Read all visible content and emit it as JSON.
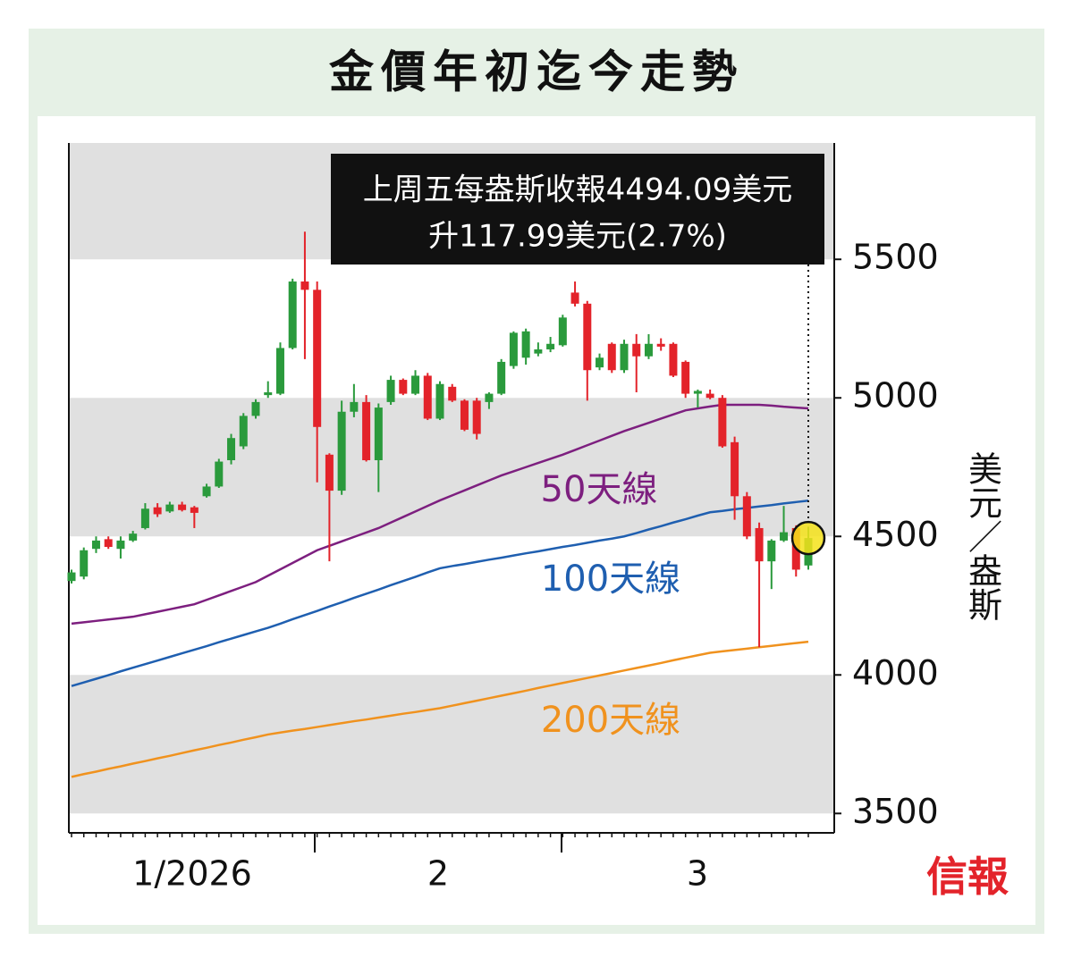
{
  "title": "金價年初迄今走勢",
  "logo": "信報",
  "chart_data": {
    "type": "candlestick",
    "categories": [
      null,
      null,
      null,
      null,
      null,
      null,
      null,
      null,
      null,
      null,
      null,
      null,
      null,
      null,
      null,
      null,
      null,
      null,
      null,
      null,
      null,
      null,
      null,
      null,
      null,
      null,
      null,
      null,
      null,
      null,
      null,
      null,
      null,
      null,
      null,
      null,
      null,
      null,
      null,
      null,
      null,
      null,
      null,
      null,
      null,
      null,
      null,
      null,
      null,
      null,
      null,
      null,
      null,
      null,
      null,
      null,
      null,
      null,
      null,
      null,
      null
    ],
    "open": [
      4339,
      4355,
      4455,
      4490,
      4455,
      4485,
      4530,
      4605,
      4590,
      4615,
      4605,
      4645,
      4680,
      4775,
      4825,
      4935,
      5010,
      5015,
      5180,
      5420,
      5390,
      4795,
      4665,
      4950,
      4985,
      4775,
      4985,
      5065,
      5015,
      5080,
      4925,
      5040,
      4990,
      4990,
      4985,
      5015,
      5115,
      5145,
      5160,
      5175,
      5190,
      5380,
      5340,
      5110,
      5195,
      5100,
      5195,
      5150,
      5195,
      5195,
      5130,
      5015,
      5015,
      5000,
      4840,
      4645,
      4530,
      4410,
      4485,
      4530,
      4395
    ],
    "high": [
      4380,
      4460,
      4500,
      4500,
      4500,
      4520,
      4620,
      4620,
      4625,
      4625,
      4610,
      4690,
      4780,
      4870,
      4945,
      4995,
      5060,
      5200,
      5430,
      5600,
      5420,
      4800,
      4990,
      5050,
      5010,
      4980,
      5080,
      5070,
      5100,
      5090,
      5060,
      5050,
      4995,
      5000,
      5020,
      5140,
      5240,
      5250,
      5200,
      5220,
      5300,
      5420,
      5350,
      5160,
      5200,
      5210,
      5230,
      5230,
      5215,
      5200,
      5135,
      5030,
      5030,
      5010,
      4860,
      4660,
      4550,
      4490,
      4610,
      4540,
      4535
    ],
    "low": [
      4330,
      4345,
      4440,
      4455,
      4420,
      4480,
      4525,
      4570,
      4585,
      4590,
      4530,
      4640,
      4675,
      4760,
      4815,
      4925,
      5000,
      5010,
      5175,
      5140,
      4695,
      4410,
      4650,
      4930,
      4770,
      4660,
      4975,
      5010,
      5010,
      4920,
      4920,
      4985,
      4880,
      4850,
      4960,
      5010,
      5105,
      5120,
      5150,
      5165,
      5185,
      5330,
      4990,
      5100,
      5090,
      5090,
      5020,
      5140,
      5170,
      5075,
      5000,
      4965,
      4995,
      4820,
      4560,
      4490,
      4100,
      4310,
      4480,
      4355,
      4380
    ],
    "close": [
      4370,
      4450,
      4485,
      4462,
      4485,
      4510,
      4600,
      4580,
      4615,
      4595,
      4585,
      4680,
      4770,
      4855,
      4935,
      4985,
      5020,
      5180,
      5420,
      5390,
      4895,
      4665,
      4950,
      4985,
      4775,
      4965,
      5065,
      5015,
      5080,
      4925,
      5050,
      4990,
      4885,
      4870,
      5015,
      5130,
      5235,
      5240,
      5175,
      5195,
      5290,
      5340,
      5100,
      5145,
      5100,
      5195,
      5150,
      5195,
      5185,
      5080,
      5015,
      5025,
      5000,
      4825,
      4645,
      4500,
      4410,
      4485,
      4515,
      4380,
      4494.09
    ],
    "up_color": "#2a9a3c",
    "down_color": "#e3232a",
    "series": [
      {
        "name": "50天線",
        "color": "#7d1f7f",
        "values": [
          4185,
          4190,
          4195,
          4200,
          4205,
          4210,
          4219,
          4228,
          4237,
          4246,
          4255,
          4271,
          4287,
          4303,
          4319,
          4335,
          4358,
          4381,
          4404,
          4427,
          4450,
          4466,
          4482,
          4498,
          4514,
          4530,
          4550,
          4570,
          4590,
          4610,
          4630,
          4648,
          4666,
          4684,
          4702,
          4720,
          4735,
          4750,
          4765,
          4780,
          4795,
          4812,
          4829,
          4846,
          4863,
          4880,
          4895,
          4910,
          4925,
          4940,
          4955,
          4962,
          4969,
          4975,
          4975,
          4975,
          4975,
          4972,
          4968,
          4965,
          4962
        ]
      },
      {
        "name": "100天線",
        "color": "#1f5fb0",
        "values": [
          3960,
          3973,
          3986,
          3999,
          4013,
          4026,
          4039,
          4052,
          4065,
          4078,
          4091,
          4104,
          4118,
          4131,
          4144,
          4157,
          4170,
          4185,
          4201,
          4216,
          4231,
          4247,
          4262,
          4278,
          4293,
          4308,
          4324,
          4339,
          4354,
          4370,
          4385,
          4393,
          4400,
          4408,
          4416,
          4423,
          4431,
          4439,
          4446,
          4454,
          4462,
          4469,
          4477,
          4485,
          4492,
          4500,
          4512,
          4525,
          4537,
          4550,
          4562,
          4575,
          4587,
          4592,
          4598,
          4603,
          4608,
          4613,
          4619,
          4624,
          4629
        ]
      },
      {
        "name": "200天線",
        "color": "#f0921e",
        "values": [
          3632,
          3642,
          3651,
          3661,
          3670,
          3680,
          3689,
          3699,
          3708,
          3718,
          3728,
          3737,
          3747,
          3756,
          3766,
          3775,
          3785,
          3792,
          3799,
          3805,
          3812,
          3819,
          3826,
          3833,
          3839,
          3846,
          3853,
          3860,
          3866,
          3873,
          3880,
          3889,
          3898,
          3907,
          3916,
          3925,
          3934,
          3943,
          3953,
          3962,
          3971,
          3980,
          3989,
          3998,
          4007,
          4016,
          4025,
          4034,
          4043,
          4053,
          4062,
          4071,
          4080,
          4085,
          4090,
          4095,
          4100,
          4105,
          4110,
          4115,
          4120
        ]
      }
    ],
    "ylim": [
      3430,
      5920
    ],
    "yticks": [
      3500,
      4000,
      4500,
      5000,
      5500
    ],
    "bands": true,
    "y_label": "美元／盎斯",
    "x_labels": [
      "1/2026",
      "2",
      "3"
    ],
    "annotation": [
      "上周五每盎斯收報4494.09美元",
      "升117.99美元(2.7%)"
    ],
    "highlight_color": "#f5e21a"
  }
}
